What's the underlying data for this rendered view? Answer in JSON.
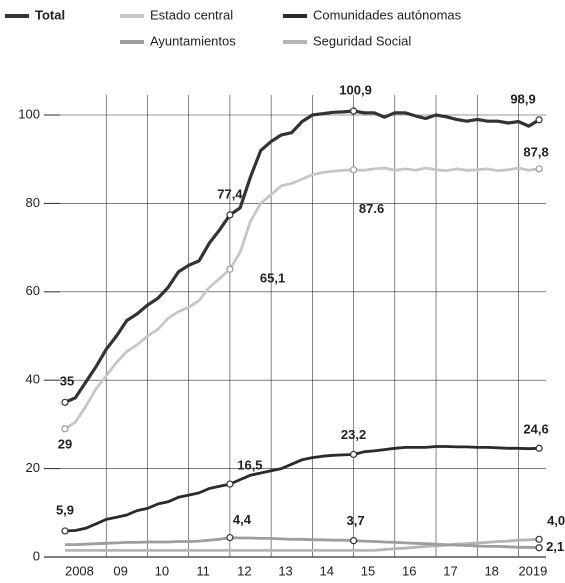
{
  "chart_data": {
    "type": "line",
    "x": [
      2008,
      2008.25,
      2008.5,
      2008.75,
      2009,
      2009.25,
      2009.5,
      2009.75,
      2010,
      2010.25,
      2010.5,
      2010.75,
      2011,
      2011.25,
      2011.5,
      2011.75,
      2012,
      2012.25,
      2012.5,
      2012.75,
      2013,
      2013.25,
      2013.5,
      2013.75,
      2014,
      2014.25,
      2014.5,
      2014.75,
      2015,
      2015.25,
      2015.5,
      2015.75,
      2016,
      2016.25,
      2016.5,
      2016.75,
      2017,
      2017.25,
      2017.5,
      2017.75,
      2018,
      2018.25,
      2018.5,
      2018.75,
      2019,
      2019.25,
      2019.5
    ],
    "series": [
      {
        "name": "Total",
        "color": "#333333",
        "values": [
          35,
          36,
          39.5,
          43,
          47,
          50,
          53.5,
          55,
          57,
          58.5,
          61,
          64.5,
          66,
          67,
          71,
          74,
          77.4,
          79,
          86,
          92,
          94,
          95.5,
          96,
          98.5,
          100,
          100.3,
          100.6,
          100.7,
          100.9,
          100.5,
          100.5,
          99.5,
          100.5,
          100.5,
          99.8,
          99.2,
          100,
          99.6,
          99,
          98.6,
          99,
          98.6,
          98.6,
          98.2,
          98.5,
          97.5,
          98.9
        ],
        "value_labels": [
          "35",
          null,
          null,
          null,
          null,
          null,
          null,
          null,
          null,
          null,
          null,
          null,
          null,
          null,
          null,
          null,
          "77,4",
          null,
          null,
          null,
          null,
          null,
          null,
          null,
          null,
          null,
          null,
          null,
          "100,9",
          null,
          null,
          null,
          null,
          null,
          null,
          null,
          null,
          null,
          null,
          null,
          null,
          null,
          null,
          null,
          null,
          null,
          "98,9"
        ]
      },
      {
        "name": "Estado central",
        "color": "#c6c6c6",
        "values": [
          29,
          30.5,
          34,
          38,
          41,
          44,
          46.5,
          48,
          50,
          51.5,
          54,
          55.5,
          56.5,
          58,
          61,
          63,
          65.1,
          69,
          76,
          80,
          82,
          84,
          84.5,
          85.5,
          86.5,
          87,
          87.3,
          87.5,
          87.6,
          87.5,
          87.8,
          88,
          87.5,
          87.8,
          87.5,
          88,
          87.6,
          87.4,
          87.8,
          87.5,
          87.6,
          87.8,
          87.4,
          87.6,
          88,
          87.5,
          87.8
        ],
        "value_labels": [
          "29",
          null,
          null,
          null,
          null,
          null,
          null,
          null,
          null,
          null,
          null,
          null,
          null,
          null,
          null,
          null,
          "65,1",
          null,
          null,
          null,
          null,
          null,
          null,
          null,
          null,
          null,
          null,
          null,
          "87.6",
          null,
          null,
          null,
          null,
          null,
          null,
          null,
          null,
          null,
          null,
          null,
          null,
          null,
          null,
          null,
          null,
          null,
          "87,8"
        ]
      },
      {
        "name": "Comunidades autónomas",
        "color": "#2a2a2a",
        "values": [
          5.9,
          6,
          6.5,
          7.5,
          8.5,
          9,
          9.5,
          10.5,
          11,
          12,
          12.5,
          13.5,
          14,
          14.5,
          15.5,
          16,
          16.5,
          17.5,
          18.5,
          19,
          19.5,
          20,
          21,
          22,
          22.5,
          22.8,
          23,
          23.1,
          23.2,
          23.8,
          24,
          24.3,
          24.6,
          24.8,
          24.8,
          24.8,
          25,
          25,
          24.9,
          24.9,
          24.8,
          24.8,
          24.7,
          24.6,
          24.6,
          24.5,
          24.6
        ],
        "value_labels": [
          "5,9",
          null,
          null,
          null,
          null,
          null,
          null,
          null,
          null,
          null,
          null,
          null,
          null,
          null,
          null,
          null,
          "16,5",
          null,
          null,
          null,
          null,
          null,
          null,
          null,
          null,
          null,
          null,
          null,
          "23,2",
          null,
          null,
          null,
          null,
          null,
          null,
          null,
          null,
          null,
          null,
          null,
          null,
          null,
          null,
          null,
          null,
          null,
          "24,6"
        ]
      },
      {
        "name": "Ayuntamientos",
        "color": "#9e9e9e",
        "values": [
          2.8,
          2.8,
          2.9,
          3,
          3.1,
          3.2,
          3.3,
          3.3,
          3.4,
          3.4,
          3.4,
          3.5,
          3.5,
          3.6,
          3.8,
          4,
          4.4,
          4.3,
          4.3,
          4.2,
          4.2,
          4.1,
          4,
          4,
          3.9,
          3.9,
          3.8,
          3.8,
          3.7,
          3.6,
          3.5,
          3.4,
          3.3,
          3.2,
          3.1,
          3,
          2.9,
          2.8,
          2.7,
          2.6,
          2.5,
          2.4,
          2.4,
          2.3,
          2.2,
          2.2,
          2.1
        ],
        "value_labels": [
          null,
          null,
          null,
          null,
          null,
          null,
          null,
          null,
          null,
          null,
          null,
          null,
          null,
          null,
          null,
          null,
          "4,4",
          null,
          null,
          null,
          null,
          null,
          null,
          null,
          null,
          null,
          null,
          null,
          "3,7",
          null,
          null,
          null,
          null,
          null,
          null,
          null,
          null,
          null,
          null,
          null,
          null,
          null,
          null,
          null,
          null,
          null,
          "2,1"
        ]
      },
      {
        "name": "Seguridad Social",
        "color": "#b5b5b5",
        "values": [
          1.5,
          1.5,
          1.5,
          1.5,
          1.5,
          1.5,
          1.5,
          1.5,
          1.5,
          1.5,
          1.5,
          1.5,
          1.5,
          1.5,
          1.5,
          1.5,
          1.5,
          1.5,
          1.5,
          1.5,
          1.5,
          1.5,
          1.5,
          1.5,
          1.5,
          1.5,
          1.5,
          1.5,
          1.5,
          1.5,
          1.5,
          1.7,
          1.9,
          2,
          2.2,
          2.4,
          2.5,
          2.7,
          2.9,
          3,
          3.2,
          3.3,
          3.5,
          3.6,
          3.8,
          3.9,
          4.0
        ],
        "value_labels": [
          null,
          null,
          null,
          null,
          null,
          null,
          null,
          null,
          null,
          null,
          null,
          null,
          null,
          null,
          null,
          null,
          null,
          null,
          null,
          null,
          null,
          null,
          null,
          null,
          null,
          null,
          null,
          null,
          null,
          null,
          null,
          null,
          null,
          null,
          null,
          null,
          null,
          null,
          null,
          null,
          null,
          null,
          null,
          null,
          null,
          null,
          "4,0"
        ]
      }
    ],
    "xlim": [
      2007.75,
      2020
    ],
    "xticks": [
      2008,
      {
        "value": 2009,
        "label": "09"
      },
      {
        "value": 2010,
        "label": "10"
      },
      {
        "value": 2011,
        "label": "11"
      },
      {
        "value": 2012,
        "label": "12"
      },
      {
        "value": 2013,
        "label": "13"
      },
      {
        "value": 2014,
        "label": "14"
      },
      {
        "value": 2015,
        "label": "15"
      },
      {
        "value": 2016,
        "label": "16"
      },
      {
        "value": 2017,
        "label": "17"
      },
      {
        "value": 2018,
        "label": "18"
      },
      2019
    ],
    "ylim": [
      0,
      100
    ],
    "yticks": [
      0,
      20,
      40,
      60,
      80,
      100
    ],
    "grid": true
  }
}
